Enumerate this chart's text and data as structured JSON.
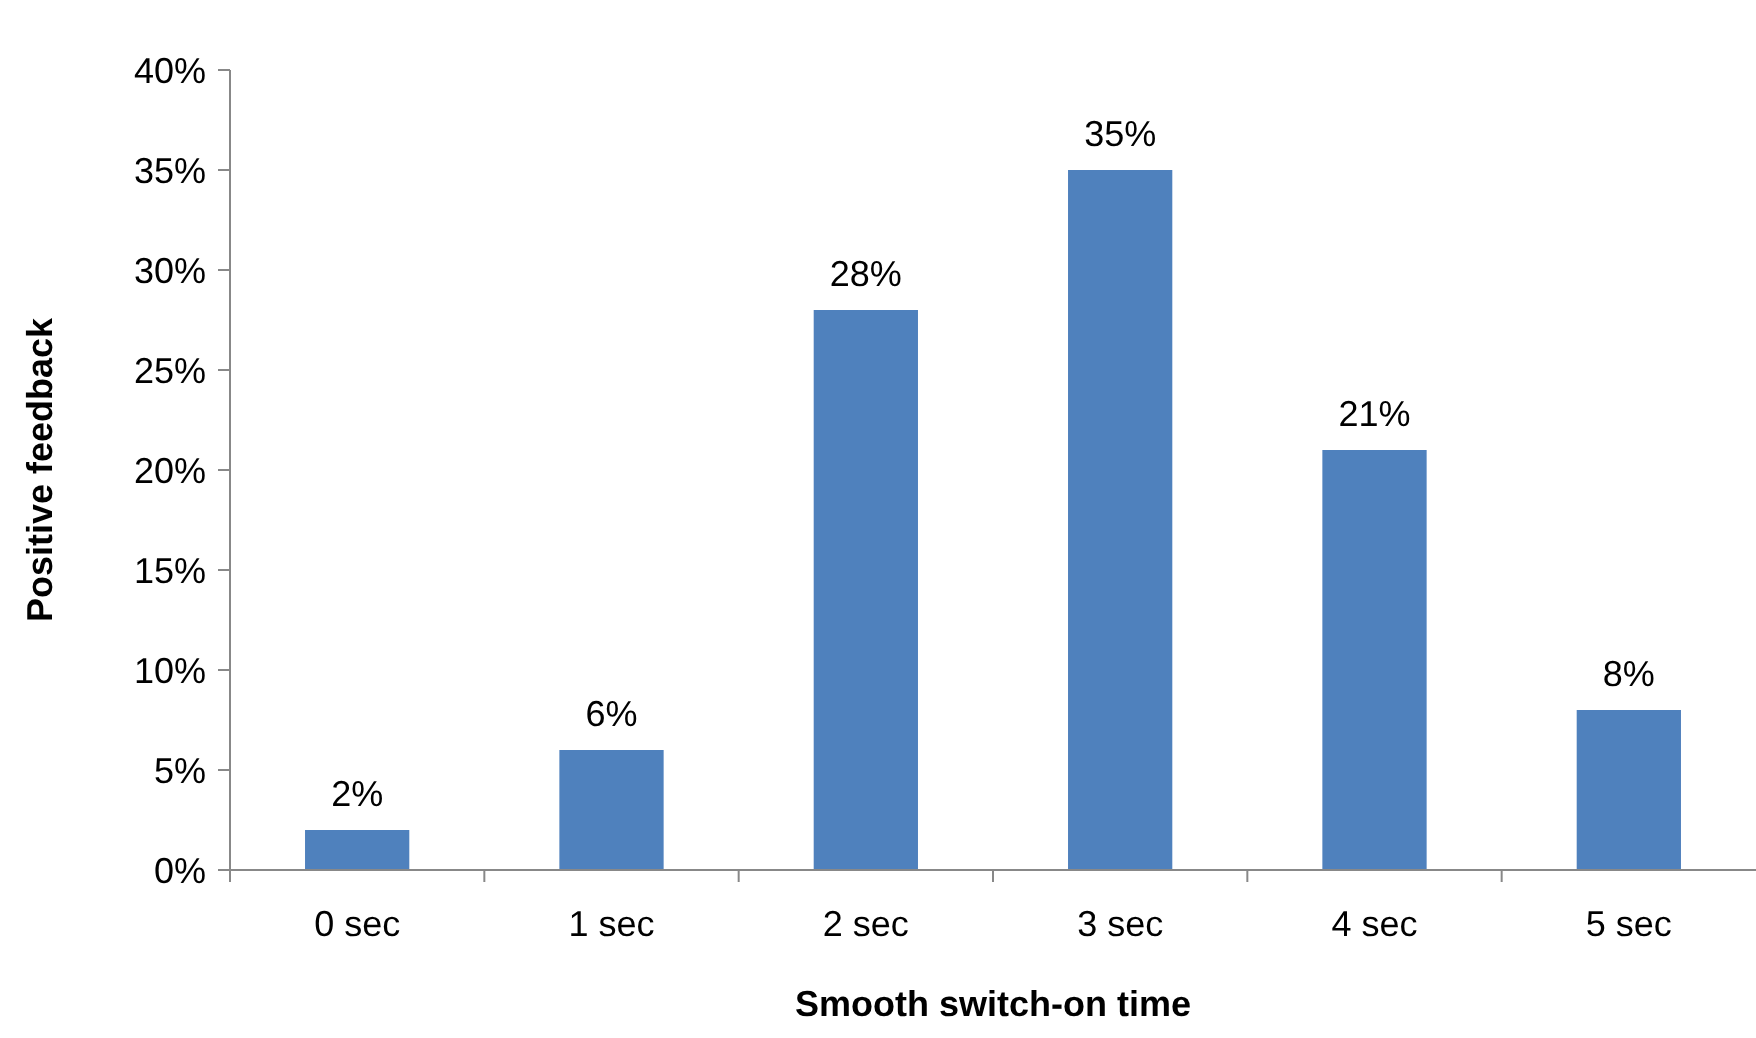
{
  "chart_data": {
    "type": "bar",
    "xlabel": "Smooth switch-on time",
    "ylabel": "Positive feedback",
    "categories": [
      "0 sec",
      "1 sec",
      "2 sec",
      "3 sec",
      "4 sec",
      "5 sec"
    ],
    "values": [
      2,
      6,
      28,
      35,
      21,
      8
    ],
    "color": "#4f81bd",
    "value_labels": [
      "2%",
      "6%",
      "28%",
      "35%",
      "21%",
      "8%"
    ],
    "ylim": [
      0,
      40
    ],
    "yticks": [
      {
        "value": 0,
        "label": "0%"
      },
      {
        "value": 5,
        "label": "5%"
      },
      {
        "value": 10,
        "label": "10%"
      },
      {
        "value": 15,
        "label": "15%"
      },
      {
        "value": 20,
        "label": "20%"
      },
      {
        "value": 25,
        "label": "25%"
      },
      {
        "value": 30,
        "label": "30%"
      },
      {
        "value": 35,
        "label": "35%"
      },
      {
        "value": 40,
        "label": "40%"
      }
    ],
    "grid": false
  }
}
